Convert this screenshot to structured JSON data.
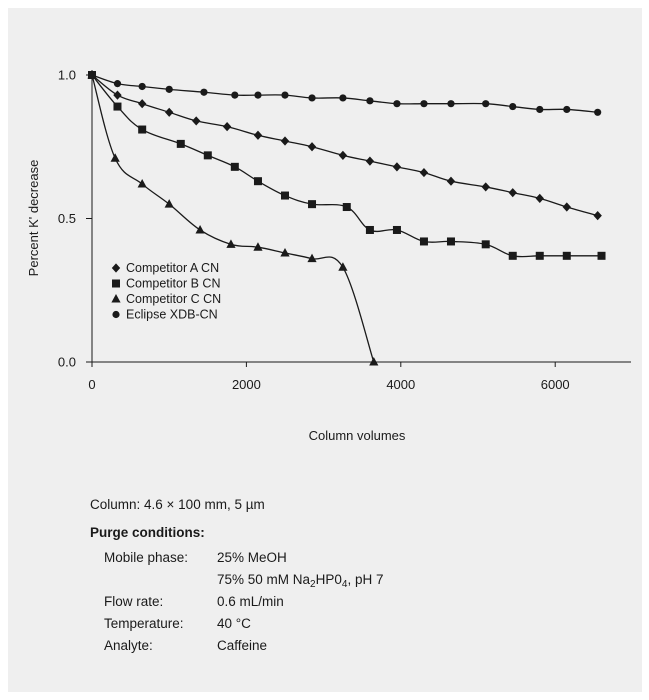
{
  "chart_data": {
    "type": "line",
    "xlabel": "Column volumes",
    "ylabel": "Percent K' decrease",
    "xlim": [
      0,
      6900
    ],
    "ylim": [
      0,
      1.05
    ],
    "x_ticks": [
      0,
      2000,
      4000,
      6000
    ],
    "y_ticks": [
      0.0,
      0.5,
      1.0
    ],
    "x_tick_labels": [
      "0",
      "2000",
      "4000",
      "6000"
    ],
    "y_tick_labels": [
      "0.0",
      "0.5",
      "1.0"
    ],
    "grid": false,
    "legend_position": "lower-left",
    "series": [
      {
        "name": "Competitor A  CN",
        "marker": "diamond",
        "x": [
          0,
          330,
          650,
          1000,
          1350,
          1750,
          2150,
          2500,
          2850,
          3250,
          3600,
          3950,
          4300,
          4650,
          5100,
          5450,
          5800,
          6150,
          6550
        ],
        "y": [
          1.0,
          0.93,
          0.9,
          0.87,
          0.84,
          0.82,
          0.79,
          0.77,
          0.75,
          0.72,
          0.7,
          0.68,
          0.66,
          0.63,
          0.61,
          0.59,
          0.57,
          0.54,
          0.51
        ]
      },
      {
        "name": "Competitor B  CN",
        "marker": "square",
        "x": [
          0,
          330,
          650,
          1150,
          1500,
          1850,
          2150,
          2500,
          2850,
          3300,
          3600,
          3950,
          4300,
          4650,
          5100,
          5450,
          5800,
          6150,
          6600
        ],
        "y": [
          1.0,
          0.89,
          0.81,
          0.76,
          0.72,
          0.68,
          0.63,
          0.58,
          0.55,
          0.54,
          0.46,
          0.46,
          0.42,
          0.42,
          0.41,
          0.37,
          0.37,
          0.37,
          0.37
        ]
      },
      {
        "name": "Competitor C  CN",
        "marker": "triangle",
        "x": [
          0,
          300,
          650,
          1000,
          1400,
          1800,
          2150,
          2500,
          2850,
          3250,
          3650
        ],
        "y": [
          1.0,
          0.71,
          0.62,
          0.55,
          0.46,
          0.41,
          0.4,
          0.38,
          0.36,
          0.33,
          0.0
        ]
      },
      {
        "name": "Eclipse XDB-CN",
        "marker": "circle",
        "x": [
          0,
          330,
          650,
          1000,
          1450,
          1850,
          2150,
          2500,
          2850,
          3250,
          3600,
          3950,
          4300,
          4650,
          5100,
          5450,
          5800,
          6150,
          6550
        ],
        "y": [
          1.0,
          0.97,
          0.96,
          0.95,
          0.94,
          0.93,
          0.93,
          0.93,
          0.92,
          0.92,
          0.91,
          0.9,
          0.9,
          0.9,
          0.9,
          0.89,
          0.88,
          0.88,
          0.87
        ]
      }
    ]
  },
  "notes": {
    "column": "Column:  4.6 × 100 mm, 5 µm",
    "purge_heading": "Purge conditions:",
    "rows": [
      {
        "label": "Mobile phase:",
        "value": "25% MeOH"
      },
      {
        "label": "",
        "value_parts": [
          "75% 50 mM Na",
          "2",
          "HP0",
          "4",
          ", pH 7"
        ]
      },
      {
        "label": "Flow rate:",
        "value": "0.6 mL/min"
      },
      {
        "label": "Temperature:",
        "value": "40 °C"
      },
      {
        "label": "Analyte:",
        "value": "Caffeine"
      }
    ]
  }
}
